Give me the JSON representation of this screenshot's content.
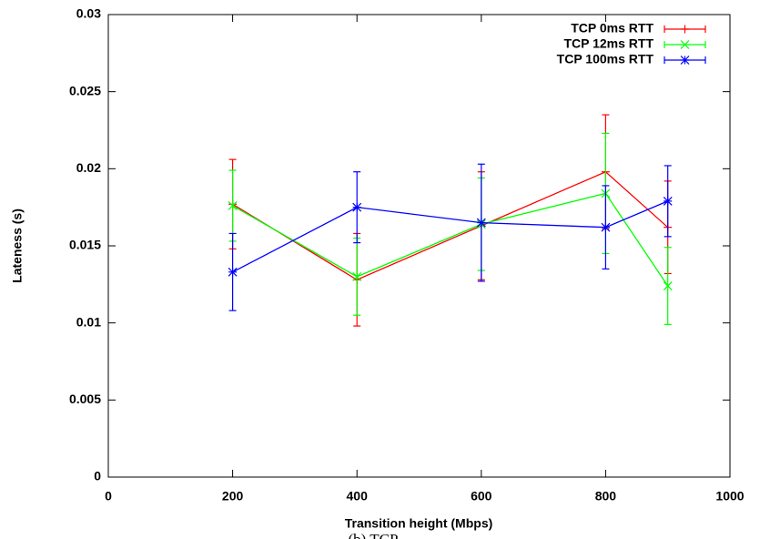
{
  "chart_data": {
    "type": "line",
    "x_label": "Transition height (Mbps)",
    "y_label": "Lateness (s)",
    "caption": "(b) TCP",
    "x": [
      200,
      400,
      600,
      800,
      900
    ],
    "series": [
      {
        "name": "TCP 0ms RTT",
        "color": "#ff0000",
        "marker": "plus",
        "values": [
          0.0177,
          0.0128,
          0.0163,
          0.0198,
          0.0162
        ],
        "errors": [
          0.0029,
          0.003,
          0.0035,
          0.0037,
          0.003
        ]
      },
      {
        "name": "TCP 12ms RTT",
        "color": "#00ff00",
        "marker": "cross",
        "values": [
          0.0176,
          0.013,
          0.0164,
          0.0184,
          0.0124
        ],
        "errors": [
          0.0023,
          0.0025,
          0.003,
          0.0039,
          0.0025
        ]
      },
      {
        "name": "TCP 100ms RTT",
        "color": "#0000ff",
        "marker": "star",
        "values": [
          0.0133,
          0.0175,
          0.0165,
          0.0162,
          0.0179
        ],
        "errors": [
          0.0025,
          0.0023,
          0.0038,
          0.0027,
          0.0023
        ]
      }
    ],
    "xlim": [
      0,
      1000
    ],
    "xticks": [
      0,
      200,
      400,
      600,
      800,
      1000
    ],
    "ylim": [
      0,
      0.03
    ],
    "yticks": [
      0,
      0.005,
      0.01,
      0.015,
      0.02,
      0.025,
      0.03
    ],
    "grid": false,
    "legend": "top-right"
  }
}
